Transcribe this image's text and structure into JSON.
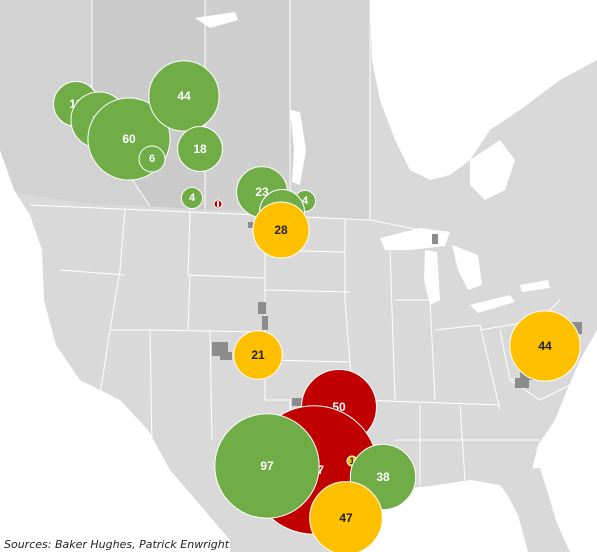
{
  "colors": {
    "green": "#70ad47",
    "red": "#c00000",
    "yellow": "#ffc000",
    "land": "#d9d9d9",
    "land_canada": "#d2d2d2",
    "land_ab": "#cacaca",
    "water": "#ffffff",
    "border": "#ffffff",
    "basin": "#8c8c8c"
  },
  "bubbles": [
    {
      "label": "18",
      "value": 18,
      "color": "green",
      "region": "Alberta-northwest"
    },
    {
      "label": "28",
      "value": 28,
      "color": "green",
      "region": "Alberta-west"
    },
    {
      "label": "60",
      "value": 60,
      "color": "green",
      "region": "Alberta-central"
    },
    {
      "label": "6",
      "value": 6,
      "color": "green",
      "region": "Alberta-south"
    },
    {
      "label": "44",
      "value": 44,
      "color": "green",
      "region": "Alberta-north"
    },
    {
      "label": "18",
      "value": 18,
      "color": "green",
      "region": "Saskatchewan"
    },
    {
      "label": "4",
      "value": 4,
      "color": "green",
      "region": "Alberta-southeast"
    },
    {
      "label": "",
      "value": 1,
      "color": "red",
      "region": "Montana-north"
    },
    {
      "label": "23",
      "value": 23,
      "color": "green",
      "region": "Saskatchewan-southeast"
    },
    {
      "label": "4",
      "value": 4,
      "color": "green",
      "region": "Manitoba"
    },
    {
      "label": "18",
      "value": 18,
      "color": "green",
      "region": "Williston-Canada"
    },
    {
      "label": "28",
      "value": 28,
      "color": "yellow",
      "region": "Williston-North-Dakota"
    },
    {
      "label": "21",
      "value": 21,
      "color": "yellow",
      "region": "Denver-Julesburg"
    },
    {
      "label": "44",
      "value": 44,
      "color": "yellow",
      "region": "Marcellus-Utica"
    },
    {
      "label": "50",
      "value": 50,
      "color": "red",
      "region": "Oklahoma"
    },
    {
      "label": "147",
      "value": 147,
      "color": "red",
      "region": "Permian"
    },
    {
      "label": "97",
      "value": 97,
      "color": "green",
      "region": "Permian-Delaware"
    },
    {
      "label": "1",
      "value": 1,
      "color": "yellow",
      "region": "East-Texas"
    },
    {
      "label": "38",
      "value": 38,
      "color": "green",
      "region": "Haynesville"
    },
    {
      "label": "47",
      "value": 47,
      "color": "yellow",
      "region": "Eagle-Ford"
    }
  ],
  "source": "Sources: Baker Hughes, Patrick Enwright"
}
